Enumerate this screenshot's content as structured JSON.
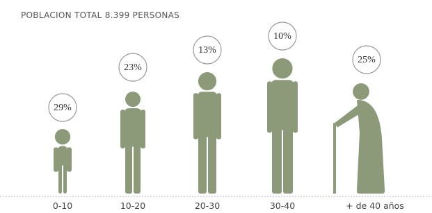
{
  "title": "POBLACION TOTAL 8.399 PERSONAS",
  "groups": [
    {
      "label": "0-10",
      "share": "29%"
    },
    {
      "label": "10-20",
      "share": "23%"
    },
    {
      "label": "20-30",
      "share": "13%"
    },
    {
      "label": "30-40",
      "share": "10%"
    },
    {
      "label": "+ de 40 años",
      "share": "25%"
    }
  ]
}
